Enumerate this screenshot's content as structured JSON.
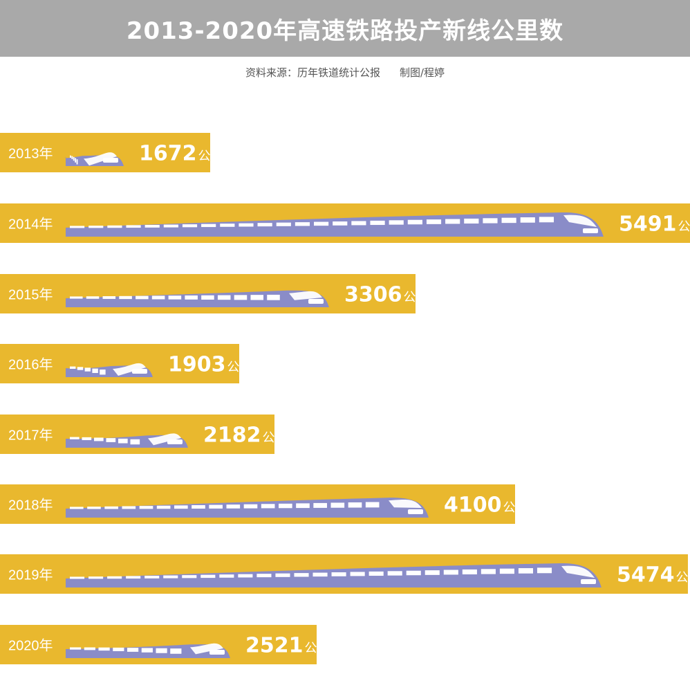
{
  "header": {
    "title": "2013-2020年高速铁路投产新线公里数",
    "source": "资料来源：历年铁道统计公报",
    "credit": "制图/程婷"
  },
  "colors": {
    "bar": "#e9b82e",
    "train": "#8a8cc8",
    "train_window": "#ffffff",
    "label_text": "#ffffff",
    "header_bg": "#a9a9a9"
  },
  "chart_data": {
    "type": "bar",
    "orientation": "horizontal",
    "title": "2013-2020年高速铁路投产新线公里数",
    "unit": "公里",
    "categories": [
      "2013年",
      "2014年",
      "2015年",
      "2016年",
      "2017年",
      "2018年",
      "2019年",
      "2020年"
    ],
    "values": [
      1672,
      5491,
      3306,
      1903,
      2182,
      4100,
      5474,
      2521
    ],
    "xlim": [
      0,
      5491
    ]
  }
}
